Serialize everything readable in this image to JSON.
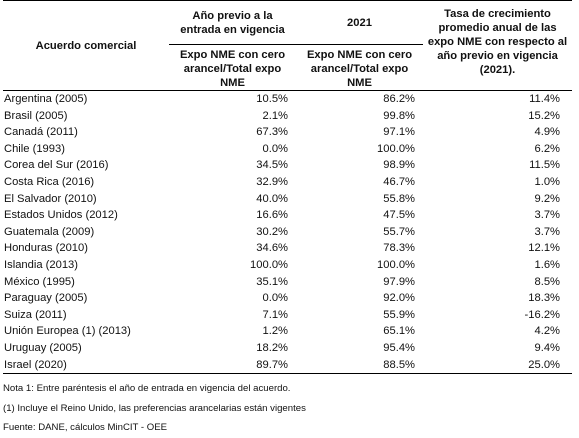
{
  "header": {
    "col1": "Acuerdo comercial",
    "col2_group": "Año previo a la entrada en vigencia",
    "col3_group": "2021",
    "col2_sub": "Expo NME con cero arancel/Total expo NME",
    "col3_sub": "Expo NME con cero arancel/Total expo NME",
    "col4": "Tasa de crecimiento promedio anual de las expo NME con respecto al año previo en vigencia (2021)."
  },
  "rows": [
    {
      "acuerdo": "Argentina (2005)",
      "previo": "10.5%",
      "y2021": "86.2%",
      "tasa": "11.4%"
    },
    {
      "acuerdo": "Brasil (2005)",
      "previo": "2.1%",
      "y2021": "99.8%",
      "tasa": "15.2%"
    },
    {
      "acuerdo": "Canadá (2011)",
      "previo": "67.3%",
      "y2021": "97.1%",
      "tasa": "4.9%"
    },
    {
      "acuerdo": "Chile (1993)",
      "previo": "0.0%",
      "y2021": "100.0%",
      "tasa": "6.2%"
    },
    {
      "acuerdo": "Corea del Sur (2016)",
      "previo": "34.5%",
      "y2021": "98.9%",
      "tasa": "11.5%"
    },
    {
      "acuerdo": "Costa Rica (2016)",
      "previo": "32.9%",
      "y2021": "46.7%",
      "tasa": "1.0%"
    },
    {
      "acuerdo": "El Salvador (2010)",
      "previo": "40.0%",
      "y2021": "55.8%",
      "tasa": "9.2%"
    },
    {
      "acuerdo": "Estados Unidos (2012)",
      "previo": "16.6%",
      "y2021": "47.5%",
      "tasa": "3.7%"
    },
    {
      "acuerdo": "Guatemala (2009)",
      "previo": "30.2%",
      "y2021": "55.7%",
      "tasa": "3.7%"
    },
    {
      "acuerdo": "Honduras (2010)",
      "previo": "34.6%",
      "y2021": "78.3%",
      "tasa": "12.1%"
    },
    {
      "acuerdo": "Islandia (2013)",
      "previo": "100.0%",
      "y2021": "100.0%",
      "tasa": "1.6%"
    },
    {
      "acuerdo": "México (1995)",
      "previo": "35.1%",
      "y2021": "97.9%",
      "tasa": "8.5%"
    },
    {
      "acuerdo": "Paraguay (2005)",
      "previo": "0.0%",
      "y2021": "92.0%",
      "tasa": "18.3%"
    },
    {
      "acuerdo": "Suiza (2011)",
      "previo": "7.1%",
      "y2021": "55.9%",
      "tasa": "-16.2%"
    },
    {
      "acuerdo": "Unión Europea (1) (2013)",
      "previo": "1.2%",
      "y2021": "65.1%",
      "tasa": "4.2%"
    },
    {
      "acuerdo": "Uruguay (2005)",
      "previo": "18.2%",
      "y2021": "95.4%",
      "tasa": "9.4%"
    },
    {
      "acuerdo": "Israel (2020)",
      "previo": "89.7%",
      "y2021": "88.5%",
      "tasa": "25.0%"
    }
  ],
  "notes": {
    "nota1": "Nota 1: Entre paréntesis el año de entrada en vigencia del acuerdo.",
    "nota2": "(1) Incluye el Reino Unido, las preferencias arancelarias están vigentes",
    "fuente": "Fuente: DANE, cálculos MinCIT - OEE"
  }
}
